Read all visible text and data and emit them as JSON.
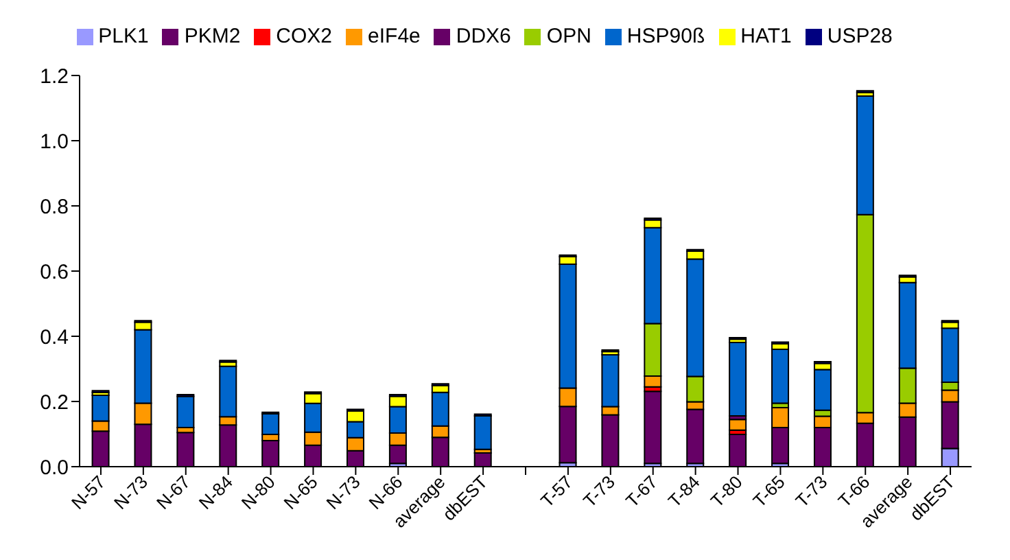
{
  "chart_data": {
    "type": "bar",
    "stacked": true,
    "legend": "top",
    "categories": [
      "N-57",
      "N-73",
      "N-67",
      "N-84",
      "N-80",
      "N-65",
      "N-73",
      "N-66",
      "average",
      "dbEST",
      null,
      "T-57",
      "T-73",
      "T-67",
      "T-84",
      "T-80",
      "T-65",
      "T-73",
      "T-66",
      "average",
      "dbEST"
    ],
    "ylim": [
      0,
      1.2
    ],
    "yticks": [
      {
        "value": 0,
        "label": "0.0"
      },
      {
        "value": 0.2,
        "label": "0.2"
      },
      {
        "value": 0.4,
        "label": "0.4"
      },
      {
        "value": 0.6,
        "label": "0.6"
      },
      {
        "value": 0.8,
        "label": "0.8"
      },
      {
        "value": 1,
        "label": "1.0"
      },
      {
        "value": 1.2,
        "label": "1.2"
      }
    ],
    "grid": false,
    "series": [
      {
        "name": "PLK1",
        "color": "#9999ff",
        "values": [
          0,
          0,
          0,
          0,
          0,
          0,
          0,
          0.01,
          0,
          0,
          null,
          0.012,
          0,
          0.01,
          0.01,
          0,
          0.01,
          0,
          0,
          0,
          0.056
        ]
      },
      {
        "name": "PKM2",
        "color": "#660066",
        "values": [
          0.109,
          0.13,
          0.105,
          0.128,
          0.08,
          0.066,
          0.049,
          0.056,
          0.09,
          0.042,
          null,
          0.173,
          0.159,
          0.221,
          0.166,
          0.099,
          0.11,
          0.12,
          0.133,
          0.152,
          0.143
        ]
      },
      {
        "name": "COX2",
        "color": "#ff0000",
        "values": [
          0,
          0,
          0,
          0,
          0,
          0,
          0,
          0,
          0,
          0,
          null,
          0,
          0,
          0.014,
          0,
          0.013,
          0,
          0,
          0,
          0,
          0
        ]
      },
      {
        "name": "eIF4e",
        "color": "#ff9900",
        "values": [
          0.031,
          0.065,
          0.015,
          0.025,
          0.019,
          0.04,
          0.04,
          0.037,
          0.035,
          0.011,
          null,
          0.056,
          0.025,
          0.033,
          0.023,
          0.033,
          0.061,
          0.035,
          0.033,
          0.043,
          0.036
        ]
      },
      {
        "name": "DDX6",
        "color": "#660066",
        "values": [
          0,
          0,
          0,
          0,
          0,
          0,
          0,
          0,
          0,
          0,
          null,
          0,
          0,
          0,
          0,
          0.011,
          0,
          0,
          0,
          0,
          0
        ]
      },
      {
        "name": "OPN",
        "color": "#99cc00",
        "values": [
          0,
          0,
          0,
          0,
          0,
          0,
          0,
          0,
          0,
          0,
          null,
          0,
          0,
          0.161,
          0.078,
          0,
          0.014,
          0.018,
          0.607,
          0.107,
          0.024
        ]
      },
      {
        "name": "HSP90ß",
        "color": "#0066cc",
        "values": [
          0.079,
          0.225,
          0.096,
          0.155,
          0.063,
          0.088,
          0.049,
          0.081,
          0.103,
          0.103,
          null,
          0.38,
          0.159,
          0.294,
          0.36,
          0.225,
          0.165,
          0.125,
          0.364,
          0.263,
          0.166
        ]
      },
      {
        "name": "HAT1",
        "color": "#ffff00",
        "values": [
          0.009,
          0.023,
          null,
          0.013,
          null,
          0.03,
          0.033,
          0.032,
          0.021,
          0,
          null,
          0.023,
          0.01,
          0.024,
          0.024,
          0.01,
          0.017,
          0.019,
          0.011,
          0.017,
          0.018
        ]
      },
      {
        "name": "USP28",
        "color": "#000080",
        "values": [
          0.005,
          0.005,
          0.005,
          0.005,
          0.005,
          0.005,
          0.005,
          0.005,
          0.005,
          0.005,
          null,
          0.005,
          0.005,
          0.005,
          0.005,
          0.005,
          0.005,
          0.005,
          0.005,
          0.005,
          0.005
        ]
      }
    ]
  }
}
